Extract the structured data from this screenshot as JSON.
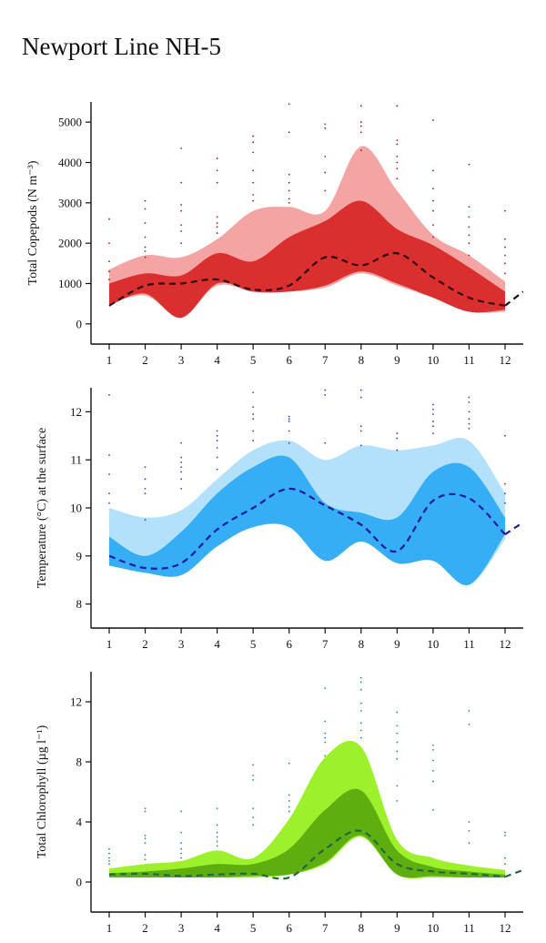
{
  "page": {
    "title": "Newport Line NH-5"
  },
  "chart_data": [
    {
      "type": "area",
      "ylabel": "Total Copepods (N m⁻³)",
      "xlim": [
        0.5,
        12.5
      ],
      "ylim": [
        -500,
        5500
      ],
      "x_ticks": [
        1,
        2,
        3,
        4,
        5,
        6,
        7,
        8,
        9,
        10,
        11,
        12
      ],
      "y_ticks": [
        0,
        1000,
        2000,
        3000,
        4000,
        5000
      ],
      "grid": false,
      "colors": {
        "outer": "#f4a5a3",
        "inner": "#db2f2f",
        "median": "#2a0a0a",
        "points": "#9c1c40"
      },
      "x": [
        1,
        2,
        3,
        4,
        5,
        6,
        7,
        8,
        9,
        10,
        11,
        12
      ],
      "outer_upper": [
        1350,
        1700,
        1650,
        2100,
        2800,
        2900,
        2800,
        4400,
        3300,
        2200,
        1700,
        1050
      ],
      "outer_lower": [
        500,
        700,
        200,
        950,
        800,
        800,
        900,
        1250,
        950,
        650,
        300,
        300
      ],
      "inner_upper": [
        1000,
        1250,
        1200,
        1750,
        1550,
        2150,
        2550,
        3050,
        2350,
        1950,
        1400,
        800
      ],
      "inner_lower": [
        450,
        750,
        150,
        1000,
        800,
        800,
        950,
        1300,
        1000,
        650,
        300,
        350
      ],
      "median": [
        450,
        950,
        1000,
        1100,
        850,
        950,
        1650,
        1450,
        1750,
        1150,
        650,
        450
      ],
      "median_extension": [
        [
          12,
          450
        ],
        [
          12.5,
          800
        ]
      ],
      "points": [
        [
          1,
          2600
        ],
        [
          1,
          2000
        ],
        [
          1,
          1550
        ],
        [
          1,
          1300
        ],
        [
          1,
          1100
        ],
        [
          2,
          3050
        ],
        [
          2,
          2850
        ],
        [
          2,
          2500
        ],
        [
          2,
          2150
        ],
        [
          2,
          1900
        ],
        [
          2,
          1800
        ],
        [
          2,
          1650
        ],
        [
          3,
          4350
        ],
        [
          3,
          3500
        ],
        [
          3,
          2950
        ],
        [
          3,
          2800
        ],
        [
          3,
          2450
        ],
        [
          3,
          2300
        ],
        [
          3,
          2000
        ],
        [
          4,
          4100
        ],
        [
          4,
          3800
        ],
        [
          4,
          3500
        ],
        [
          4,
          2650
        ],
        [
          4,
          2500
        ],
        [
          4,
          2400
        ],
        [
          4,
          2250
        ],
        [
          5,
          4650
        ],
        [
          5,
          4500
        ],
        [
          5,
          4250
        ],
        [
          5,
          3800
        ],
        [
          5,
          3500
        ],
        [
          5,
          3200
        ],
        [
          5,
          3050
        ],
        [
          6,
          5450
        ],
        [
          6,
          4750
        ],
        [
          6,
          3700
        ],
        [
          6,
          3500
        ],
        [
          6,
          3300
        ],
        [
          6,
          3100
        ],
        [
          6,
          3000
        ],
        [
          7,
          4950
        ],
        [
          7,
          4850
        ],
        [
          7,
          4150
        ],
        [
          7,
          3750
        ],
        [
          7,
          3300
        ],
        [
          8,
          5400
        ],
        [
          8,
          5000
        ],
        [
          8,
          4900
        ],
        [
          8,
          4750
        ],
        [
          8,
          4300
        ],
        [
          9,
          5400
        ],
        [
          9,
          4550
        ],
        [
          9,
          4450
        ],
        [
          9,
          4150
        ],
        [
          9,
          4000
        ],
        [
          9,
          3850
        ],
        [
          9,
          3600
        ],
        [
          10,
          5050
        ],
        [
          10,
          3800
        ],
        [
          10,
          3350
        ],
        [
          10,
          3050
        ],
        [
          10,
          2800
        ],
        [
          10,
          2450
        ],
        [
          10,
          2150
        ],
        [
          11,
          3950
        ],
        [
          11,
          2900
        ],
        [
          11,
          2650
        ],
        [
          11,
          2400
        ],
        [
          11,
          2200
        ],
        [
          11,
          2000
        ],
        [
          11,
          1700
        ],
        [
          12,
          2800
        ],
        [
          12,
          2100
        ],
        [
          12,
          1900
        ],
        [
          12,
          1700
        ],
        [
          12,
          1500
        ],
        [
          12,
          1250
        ]
      ]
    },
    {
      "type": "area",
      "ylabel": "Temperature (°C) at the surface",
      "xlim": [
        0.5,
        12.5
      ],
      "ylim": [
        7.5,
        12.5
      ],
      "x_ticks": [
        1,
        2,
        3,
        4,
        5,
        6,
        7,
        8,
        9,
        10,
        11,
        12
      ],
      "y_ticks": [
        8,
        9,
        10,
        11,
        12
      ],
      "grid": false,
      "colors": {
        "outer": "#b3e1fb",
        "inner": "#36aef5",
        "median": "#161aa0",
        "points": "#3040c8"
      },
      "x": [
        1,
        2,
        3,
        4,
        5,
        6,
        7,
        8,
        9,
        10,
        11,
        12
      ],
      "outer_upper": [
        10.0,
        9.8,
        9.95,
        10.6,
        11.2,
        11.4,
        11.0,
        11.3,
        11.2,
        11.3,
        11.4,
        10.3
      ],
      "outer_lower": [
        8.85,
        8.7,
        8.6,
        9.2,
        9.6,
        9.6,
        8.9,
        9.3,
        8.9,
        8.9,
        8.4,
        9.35
      ],
      "inner_upper": [
        9.4,
        9.0,
        9.5,
        10.3,
        10.85,
        11.05,
        10.1,
        9.9,
        9.8,
        10.75,
        10.85,
        9.8
      ],
      "inner_lower": [
        8.8,
        8.65,
        8.6,
        9.2,
        9.6,
        9.6,
        8.9,
        9.3,
        8.85,
        8.9,
        8.4,
        9.45
      ],
      "median": [
        9.0,
        8.75,
        8.85,
        9.55,
        10.0,
        10.4,
        10.05,
        9.65,
        9.1,
        10.15,
        10.2,
        9.45
      ],
      "median_extension": [
        [
          12,
          9.45
        ],
        [
          12.5,
          9.7
        ]
      ],
      "points": [
        [
          1,
          12.35
        ],
        [
          1,
          11.1
        ],
        [
          1,
          10.7
        ],
        [
          1,
          10.3
        ],
        [
          1,
          10.1
        ],
        [
          2,
          10.85
        ],
        [
          2,
          10.6
        ],
        [
          2,
          10.4
        ],
        [
          2,
          10.3
        ],
        [
          2,
          9.75
        ],
        [
          3,
          11.35
        ],
        [
          3,
          11.05
        ],
        [
          3,
          10.95
        ],
        [
          3,
          10.85
        ],
        [
          3,
          10.75
        ],
        [
          3,
          10.6
        ],
        [
          3,
          10.4
        ],
        [
          4,
          11.6
        ],
        [
          4,
          11.5
        ],
        [
          4,
          11.4
        ],
        [
          4,
          11.25
        ],
        [
          4,
          11.05
        ],
        [
          4,
          10.8
        ],
        [
          5,
          12.4
        ],
        [
          5,
          12.1
        ],
        [
          5,
          11.95
        ],
        [
          5,
          11.85
        ],
        [
          5,
          11.6
        ],
        [
          5,
          11.4
        ],
        [
          6,
          11.9
        ],
        [
          6,
          11.85
        ],
        [
          6,
          11.8
        ],
        [
          6,
          11.6
        ],
        [
          6,
          11.35
        ],
        [
          7,
          12.45
        ],
        [
          7,
          12.35
        ],
        [
          7,
          11.35
        ],
        [
          8,
          12.45
        ],
        [
          8,
          12.3
        ],
        [
          8,
          11.7
        ],
        [
          8,
          11.6
        ],
        [
          8,
          11.3
        ],
        [
          9,
          11.55
        ],
        [
          9,
          11.45
        ],
        [
          9,
          11.2
        ],
        [
          10,
          12.15
        ],
        [
          10,
          12.05
        ],
        [
          10,
          11.95
        ],
        [
          10,
          11.8
        ],
        [
          10,
          11.7
        ],
        [
          10,
          11.55
        ],
        [
          11,
          12.3
        ],
        [
          11,
          12.2
        ],
        [
          11,
          12.0
        ],
        [
          11,
          11.85
        ],
        [
          11,
          11.75
        ],
        [
          11,
          11.65
        ],
        [
          12,
          11.5
        ],
        [
          12,
          10.5
        ],
        [
          12,
          10.3
        ],
        [
          12,
          10.1
        ]
      ]
    },
    {
      "type": "area",
      "ylabel": "Total Chlorophyll (µg l⁻¹)",
      "xlim": [
        0.5,
        12.5
      ],
      "ylim": [
        -2,
        14
      ],
      "x_ticks": [
        1,
        2,
        3,
        4,
        5,
        6,
        7,
        8,
        9,
        10,
        11,
        12
      ],
      "y_ticks": [
        0,
        4,
        8,
        12
      ],
      "grid": false,
      "colors": {
        "outer": "#9cf02c",
        "inner": "#5fae10",
        "median": "#1f6a3c",
        "points": "#1e9080"
      },
      "x": [
        1,
        2,
        3,
        4,
        5,
        6,
        7,
        8,
        9,
        10,
        11,
        12
      ],
      "outer_upper": [
        0.9,
        1.2,
        1.4,
        2.1,
        1.6,
        4.2,
        8.3,
        9.0,
        2.8,
        1.6,
        1.1,
        0.8
      ],
      "outer_lower": [
        0.3,
        0.3,
        0.3,
        0.3,
        0.3,
        0.5,
        1.2,
        3.0,
        0.5,
        0.3,
        0.3,
        0.3
      ],
      "inner_upper": [
        0.6,
        0.7,
        0.9,
        1.2,
        1.2,
        2.2,
        4.8,
        6.1,
        2.1,
        1.0,
        0.7,
        0.5
      ],
      "inner_lower": [
        0.3,
        0.3,
        0.3,
        0.3,
        0.4,
        0.5,
        1.3,
        3.1,
        0.5,
        0.4,
        0.3,
        0.3
      ],
      "median": [
        0.5,
        0.55,
        0.4,
        0.5,
        0.55,
        0.3,
        2.2,
        3.4,
        1.2,
        0.7,
        0.55,
        0.35
      ],
      "median_extension": [
        [
          12,
          0.35
        ],
        [
          12.5,
          0.8
        ]
      ],
      "points": [
        [
          1,
          2.2
        ],
        [
          1,
          1.9
        ],
        [
          1,
          1.6
        ],
        [
          1,
          1.4
        ],
        [
          1,
          1.2
        ],
        [
          2,
          4.9
        ],
        [
          2,
          4.7
        ],
        [
          2,
          3.1
        ],
        [
          2,
          2.9
        ],
        [
          2,
          2.6
        ],
        [
          2,
          1.8
        ],
        [
          2,
          1.5
        ],
        [
          3,
          4.7
        ],
        [
          3,
          3.3
        ],
        [
          3,
          2.6
        ],
        [
          3,
          2.2
        ],
        [
          3,
          1.9
        ],
        [
          3,
          1.6
        ],
        [
          4,
          4.9
        ],
        [
          4,
          3.8
        ],
        [
          4,
          3.3
        ],
        [
          4,
          3.0
        ],
        [
          4,
          2.7
        ],
        [
          4,
          2.4
        ],
        [
          5,
          7.8
        ],
        [
          5,
          7.1
        ],
        [
          5,
          6.8
        ],
        [
          5,
          4.9
        ],
        [
          5,
          4.3
        ],
        [
          5,
          3.8
        ],
        [
          6,
          7.9
        ],
        [
          6,
          5.8
        ],
        [
          6,
          5.4
        ],
        [
          6,
          5.0
        ],
        [
          6,
          4.7
        ],
        [
          7,
          12.9
        ],
        [
          7,
          10.7
        ],
        [
          7,
          9.9
        ],
        [
          7,
          9.6
        ],
        [
          7,
          9.3
        ],
        [
          7,
          8.4
        ],
        [
          8,
          13.6
        ],
        [
          8,
          13.3
        ],
        [
          8,
          12.8
        ],
        [
          8,
          11.9
        ],
        [
          8,
          11.4
        ],
        [
          8,
          10.6
        ],
        [
          8,
          10.1
        ],
        [
          8,
          9.6
        ],
        [
          9,
          11.3
        ],
        [
          9,
          10.4
        ],
        [
          9,
          9.9
        ],
        [
          9,
          9.3
        ],
        [
          9,
          8.7
        ],
        [
          9,
          8.2
        ],
        [
          9,
          6.4
        ],
        [
          9,
          5.4
        ],
        [
          10,
          9.1
        ],
        [
          10,
          8.8
        ],
        [
          10,
          8.1
        ],
        [
          10,
          7.4
        ],
        [
          10,
          6.7
        ],
        [
          10,
          4.8
        ],
        [
          11,
          11.4
        ],
        [
          11,
          10.5
        ],
        [
          11,
          4.0
        ],
        [
          11,
          3.4
        ],
        [
          11,
          2.6
        ],
        [
          12,
          3.3
        ],
        [
          12,
          3.1
        ],
        [
          12,
          1.6
        ],
        [
          12,
          1.2
        ]
      ]
    }
  ]
}
